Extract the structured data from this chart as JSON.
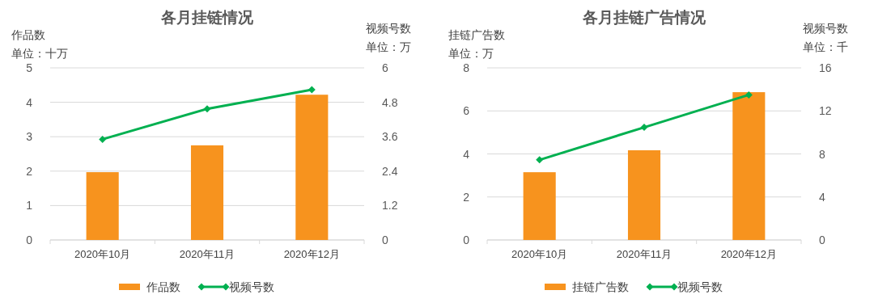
{
  "chart_data": [
    {
      "type": "bar",
      "title": "各月挂链情况",
      "ylabel": "作品数",
      "y2label": "视频号数",
      "annotations": [
        "单位：十万",
        "单位：万"
      ],
      "categories": [
        "2020年10月",
        "2020年11月",
        "2020年12月"
      ],
      "series": [
        {
          "name": "作品数",
          "color": "#f7931e",
          "values": [
            1.97,
            2.75,
            4.22
          ]
        },
        {
          "name": "视频号数",
          "type": "line",
          "axis": "y2",
          "color": "#00b050",
          "values": [
            3.51,
            4.57,
            5.24
          ]
        }
      ],
      "ylim": [
        0,
        5
      ],
      "yticks": [
        0,
        1,
        2,
        3,
        4,
        5
      ],
      "y2lim": [
        0,
        6
      ],
      "y2ticks": [
        0,
        1.2,
        2.4,
        3.6,
        4.8,
        6
      ],
      "grid": "y",
      "legend": "bottom",
      "marker": "diamond"
    },
    {
      "type": "bar",
      "title": "各月挂链广告情况",
      "ylabel": "挂链广告数",
      "y2label": "视频号数",
      "annotations": [
        "单位：万",
        "单位：千"
      ],
      "categories": [
        "2020年10月",
        "2020年11月",
        "2020年12月"
      ],
      "series": [
        {
          "name": "挂链广告数",
          "color": "#f7931e",
          "values": [
            3.15,
            4.17,
            6.87
          ]
        },
        {
          "name": "视频号数",
          "type": "line",
          "axis": "y2",
          "color": "#00b050",
          "values": [
            7.45,
            10.47,
            13.49
          ]
        }
      ],
      "ylim": [
        0,
        8
      ],
      "yticks": [
        0,
        2,
        4,
        6,
        8
      ],
      "y2lim": [
        0,
        16
      ],
      "y2ticks": [
        0,
        4,
        8,
        12,
        16
      ],
      "grid": "y",
      "legend": "bottom",
      "marker": "diamond"
    }
  ]
}
